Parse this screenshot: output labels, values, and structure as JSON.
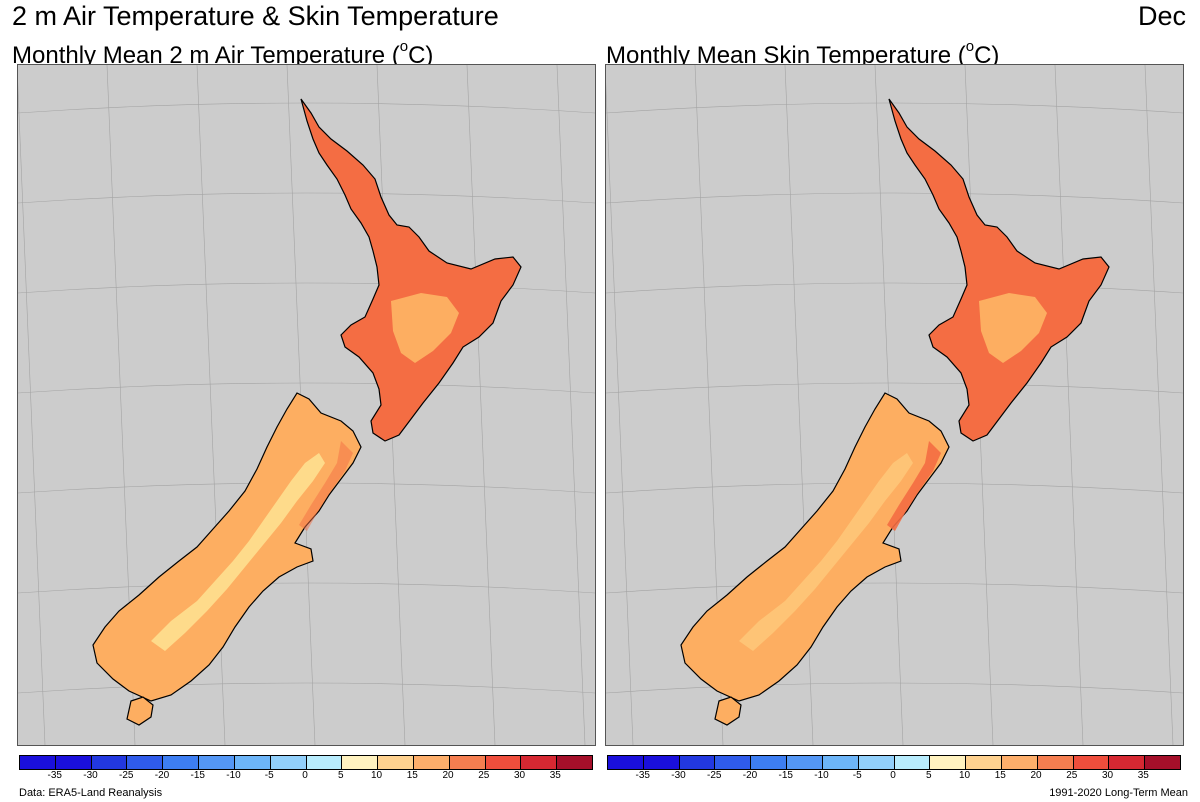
{
  "figure": {
    "title": "2 m Air Temperature & Skin Temperature",
    "month": "Dec"
  },
  "panels": [
    {
      "title": "Monthly Mean 2 m Air Temperature (",
      "unit_sup": "o",
      "unit_tail": "C)",
      "map_name": "air-temperature-map",
      "region": "New Zealand",
      "dominant_colors": {
        "north_island": "#f46d43",
        "interior": "#fdae61",
        "alpine": "#fee090"
      }
    },
    {
      "title": "Monthly Mean Skin Temperature (",
      "unit_sup": "o",
      "unit_tail": "C)",
      "map_name": "skin-temperature-map",
      "region": "New Zealand",
      "dominant_colors": {
        "north_island": "#f46d43",
        "interior": "#fdae61",
        "alpine": "#fee090"
      }
    }
  ],
  "colorbar": {
    "ticks": [
      "-35",
      "-30",
      "-25",
      "-20",
      "-15",
      "-10",
      "-5",
      "0",
      "5",
      "10",
      "15",
      "20",
      "25",
      "30",
      "35"
    ],
    "colors": [
      "#1a0fdc",
      "#2238e0",
      "#2f5bea",
      "#3d7ef2",
      "#5497f5",
      "#6db5f8",
      "#92d0fb",
      "#b8ecfd",
      "#fff2c0",
      "#fed18f",
      "#fdae6b",
      "#f57e50",
      "#ef4e3c",
      "#d62832",
      "#a50f2a"
    ]
  },
  "footer": {
    "left": "Data: ERA5-Land Reanalysis",
    "right": "1991-2020 Long-Term Mean"
  },
  "colors": {
    "ocean": "#cccccc",
    "coast": "#000000",
    "grid": "#9a9a9a"
  }
}
